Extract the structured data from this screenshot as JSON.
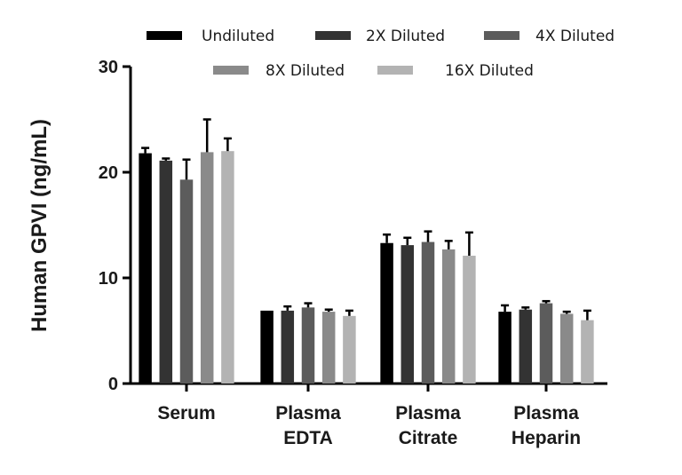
{
  "chart_data": {
    "type": "bar",
    "title": "",
    "xlabel": "",
    "ylabel": "Human GPVI (ng/mL)",
    "ylim": [
      0,
      30
    ],
    "yticks": [
      "0",
      "10",
      "20",
      "30"
    ],
    "categories": [
      [
        "Serum"
      ],
      [
        "Plasma",
        "EDTA"
      ],
      [
        "Plasma",
        "Citrate"
      ],
      [
        "Plasma",
        "Heparin"
      ]
    ],
    "series": [
      {
        "name": "Undiluted",
        "color": "#000000",
        "values": [
          21.8,
          6.9,
          13.3,
          6.8
        ],
        "errors": [
          0.5,
          0.0,
          0.8,
          0.6
        ]
      },
      {
        "name": "2X Diluted",
        "color": "#333333",
        "values": [
          21.1,
          6.9,
          13.1,
          7.0
        ],
        "errors": [
          0.2,
          0.4,
          0.7,
          0.2
        ]
      },
      {
        "name": "4X Diluted",
        "color": "#5c5c5c",
        "values": [
          19.3,
          7.2,
          13.4,
          7.6
        ],
        "errors": [
          1.9,
          0.4,
          1.0,
          0.2
        ]
      },
      {
        "name": "8X Diluted",
        "color": "#8a8a8a",
        "values": [
          21.9,
          6.8,
          12.7,
          6.6
        ],
        "errors": [
          3.1,
          0.2,
          0.8,
          0.2
        ]
      },
      {
        "name": "16X Diluted",
        "color": "#b3b3b3",
        "values": [
          22.0,
          6.4,
          12.1,
          6.0
        ],
        "errors": [
          1.2,
          0.5,
          2.2,
          0.9
        ]
      }
    ],
    "legend_position": "top",
    "grid": false
  }
}
